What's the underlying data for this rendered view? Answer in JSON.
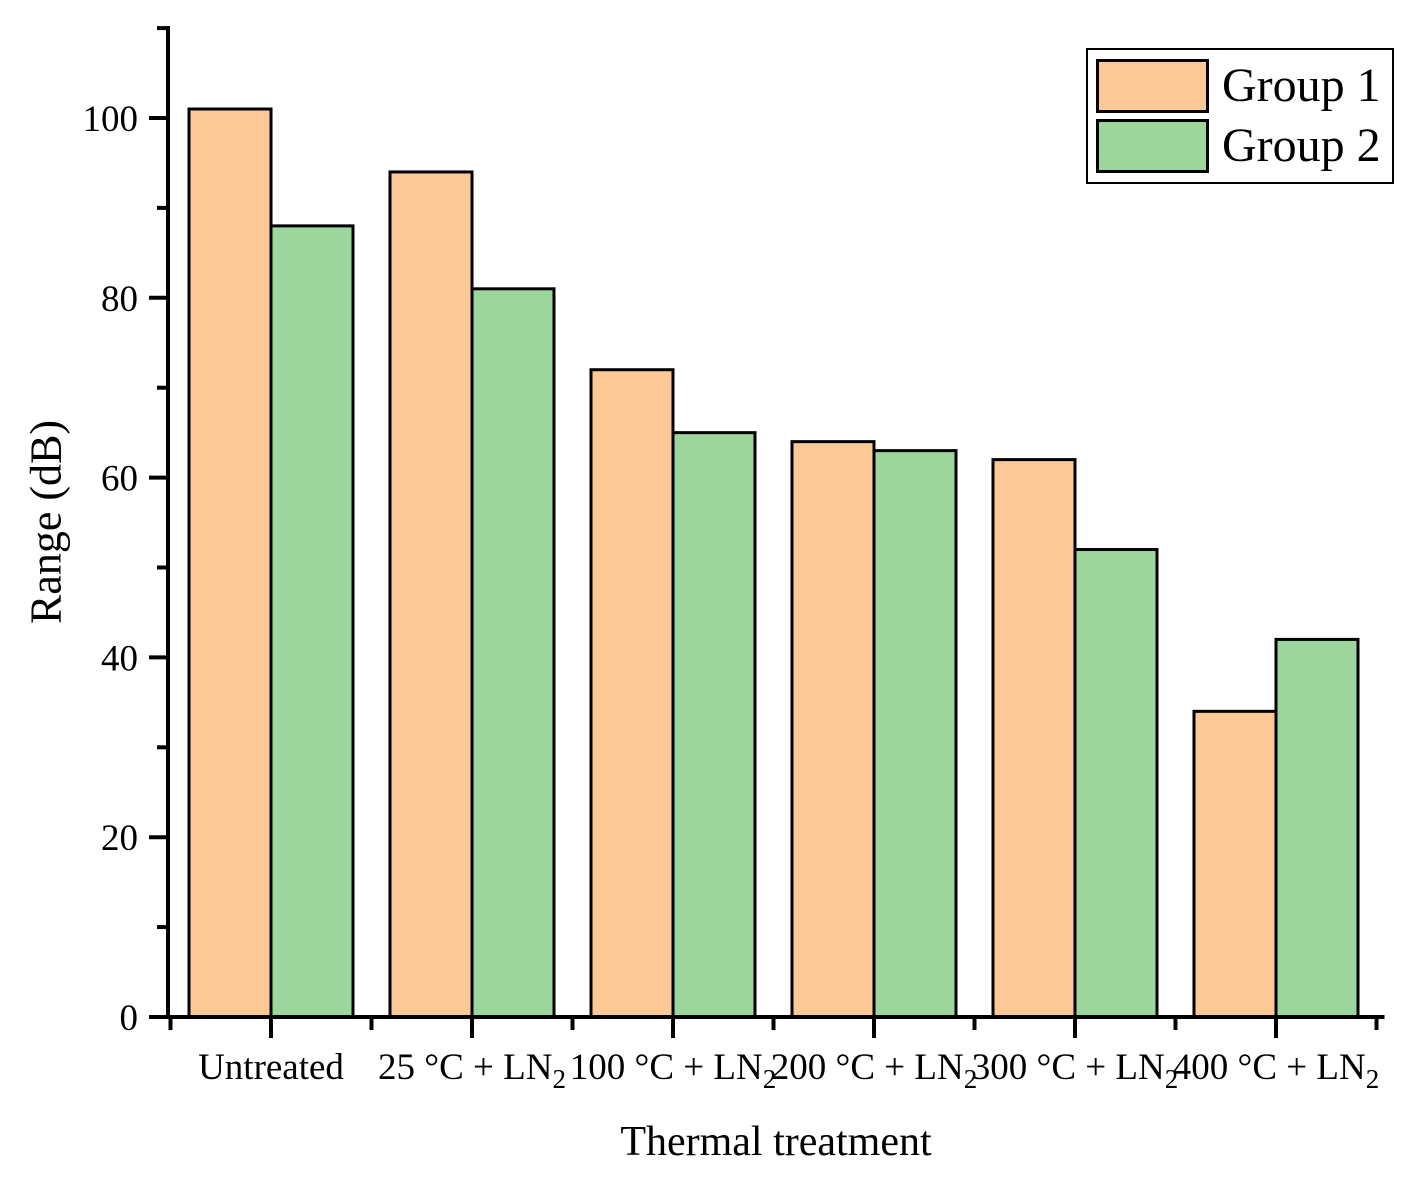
{
  "chart_data": {
    "type": "bar",
    "title": "",
    "xlabel": "Thermal treatment",
    "ylabel": "Range (dB)",
    "categories": [
      {
        "label": "Untreated",
        "sub": ""
      },
      {
        "label": "25 °C + LN",
        "sub": "2"
      },
      {
        "label": "100 °C + LN",
        "sub": "2"
      },
      {
        "label": "200 °C + LN",
        "sub": "2"
      },
      {
        "label": "300 °C + LN",
        "sub": "2"
      },
      {
        "label": "400 °C + LN",
        "sub": "2"
      }
    ],
    "series": [
      {
        "name": "Group 1",
        "color": "#FBC896",
        "values": [
          101,
          94,
          72,
          64,
          62,
          34
        ]
      },
      {
        "name": "Group 2",
        "color": "#9CD69C",
        "values": [
          88,
          81,
          65,
          63,
          52,
          42
        ]
      }
    ],
    "ylim": [
      0,
      110
    ],
    "yticks_major": [
      0,
      20,
      40,
      60,
      80,
      100
    ],
    "yticks_minor": [
      10,
      30,
      50,
      70,
      90,
      110
    ],
    "grid": false,
    "legend_position": "top-right",
    "bar_edge_color": "#000000",
    "axis_color": "#000000",
    "background": "#FFFFFF"
  }
}
